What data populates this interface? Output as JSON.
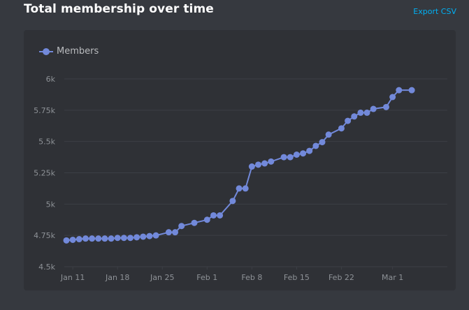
{
  "header": {
    "title": "Total membership over time",
    "export_label": "Export CSV"
  },
  "colors": {
    "background": "#36393f",
    "panel": "#2f3136",
    "series": "#7289da",
    "grid": "#3c3f45",
    "link": "#00b0f4"
  },
  "chart_data": {
    "type": "line",
    "title": "Total membership over time",
    "xlabel": "",
    "ylabel": "",
    "legend": "top-left",
    "grid": true,
    "ylim": [
      4500,
      6000
    ],
    "y_ticks": [
      4500,
      4750,
      5000,
      5250,
      5500,
      5750,
      6000
    ],
    "y_tick_labels": [
      "4.5k",
      "4.75k",
      "5k",
      "5.25k",
      "5.5k",
      "5.75k",
      "6k"
    ],
    "x_ticks": [
      "Jan 11",
      "Jan 18",
      "Jan 25",
      "Feb 1",
      "Feb 8",
      "Feb 15",
      "Feb 22",
      "Mar 1"
    ],
    "series": [
      {
        "name": "Members",
        "x": [
          "Jan 10",
          "Jan 11",
          "Jan 12",
          "Jan 13",
          "Jan 14",
          "Jan 15",
          "Jan 16",
          "Jan 17",
          "Jan 18",
          "Jan 19",
          "Jan 20",
          "Jan 21",
          "Jan 22",
          "Jan 23",
          "Jan 24",
          "Jan 26",
          "Jan 27",
          "Jan 28",
          "Jan 30",
          "Feb 1",
          "Feb 2",
          "Feb 3",
          "Feb 5",
          "Feb 6",
          "Feb 7",
          "Feb 8",
          "Feb 9",
          "Feb 10",
          "Feb 11",
          "Feb 13",
          "Feb 14",
          "Feb 15",
          "Feb 16",
          "Feb 17",
          "Feb 18",
          "Feb 19",
          "Feb 20",
          "Feb 22",
          "Feb 23",
          "Feb 24",
          "Feb 25",
          "Feb 26",
          "Feb 27",
          "Feb 29",
          "Mar 1",
          "Mar 2",
          "Mar 4"
        ],
        "values": [
          4710,
          4715,
          4720,
          4725,
          4725,
          4725,
          4725,
          4725,
          4730,
          4730,
          4730,
          4735,
          4740,
          4745,
          4750,
          4775,
          4775,
          4825,
          4850,
          4875,
          4910,
          4910,
          5025,
          5125,
          5125,
          5300,
          5315,
          5325,
          5340,
          5375,
          5375,
          5395,
          5405,
          5425,
          5465,
          5495,
          5555,
          5605,
          5665,
          5700,
          5730,
          5730,
          5760,
          5775,
          5855,
          5910,
          5910
        ]
      }
    ]
  }
}
